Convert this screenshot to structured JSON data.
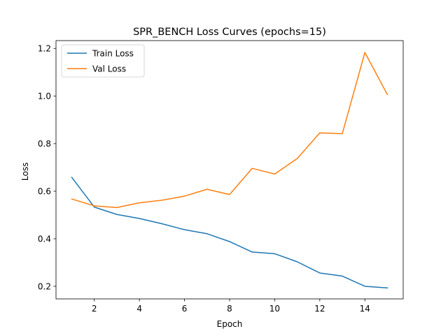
{
  "chart_data": {
    "type": "line",
    "title": "SPR_BENCH Loss Curves (epochs=15)",
    "xlabel": "Epoch",
    "ylabel": "Loss",
    "x": [
      1,
      2,
      3,
      4,
      5,
      6,
      7,
      8,
      9,
      10,
      11,
      12,
      13,
      14,
      15
    ],
    "xlim": [
      0.3,
      15.7
    ],
    "ylim": [
      0.147,
      1.233
    ],
    "xticks": [
      2,
      4,
      6,
      8,
      10,
      12,
      14
    ],
    "yticks": [
      0.2,
      0.4,
      0.6,
      0.8,
      1.0,
      1.2
    ],
    "ytick_labels": [
      "0.2",
      "0.4",
      "0.6",
      "0.8",
      "1.0",
      "1.2"
    ],
    "grid": false,
    "legend_position": "top-left",
    "series": [
      {
        "name": "Train Loss",
        "color": "#1f77b4",
        "values": [
          0.658,
          0.533,
          0.502,
          0.485,
          0.463,
          0.438,
          0.421,
          0.388,
          0.344,
          0.337,
          0.303,
          0.256,
          0.243,
          0.2,
          0.193
        ]
      },
      {
        "name": "Val Loss",
        "color": "#ff7f0e",
        "values": [
          0.567,
          0.538,
          0.531,
          0.551,
          0.562,
          0.579,
          0.608,
          0.586,
          0.696,
          0.672,
          0.737,
          0.845,
          0.842,
          1.183,
          1.006
        ]
      }
    ]
  }
}
